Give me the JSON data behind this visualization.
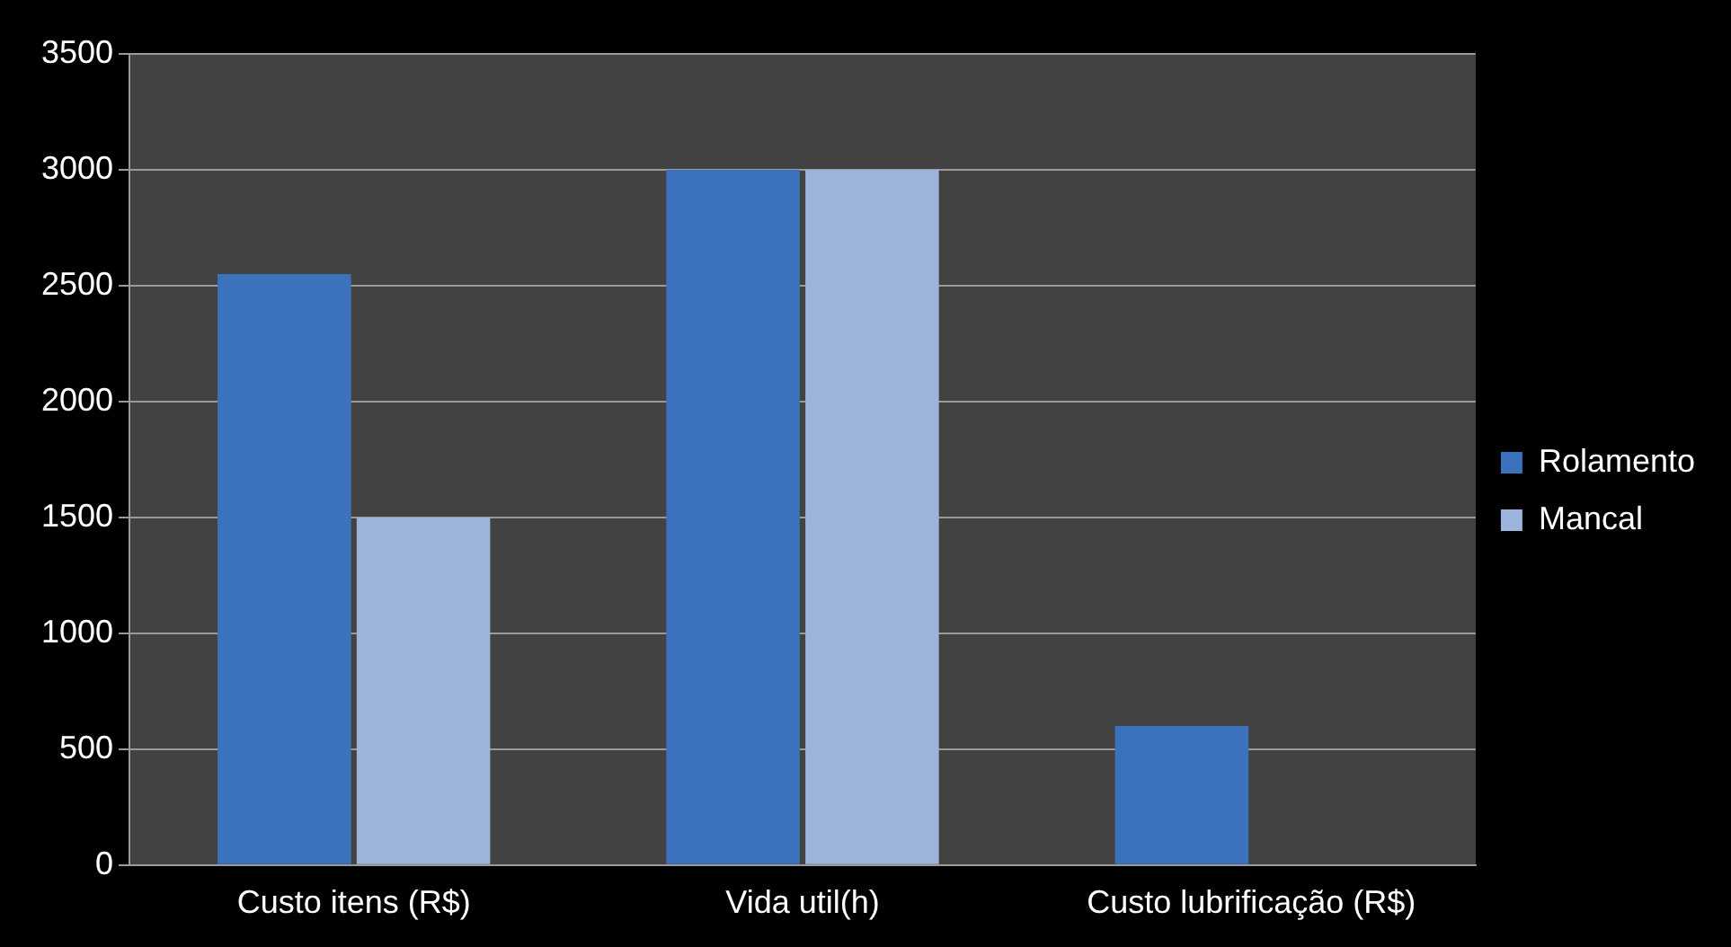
{
  "chart_data": {
    "type": "bar",
    "categories": [
      "Custo itens (R$)",
      "Vida util(h)",
      "Custo lubrificação (R$)"
    ],
    "series": [
      {
        "name": "Rolamento",
        "color": "#3c72bb",
        "values": [
          2550,
          3000,
          600
        ]
      },
      {
        "name": "Mancal",
        "color": "#9cb3dc",
        "values": [
          1500,
          3000,
          0
        ]
      }
    ],
    "ylim": [
      0,
      3500
    ],
    "yticks": [
      0,
      500,
      1000,
      1500,
      2000,
      2500,
      3000,
      3500
    ],
    "grid": "y",
    "legend": "right"
  }
}
